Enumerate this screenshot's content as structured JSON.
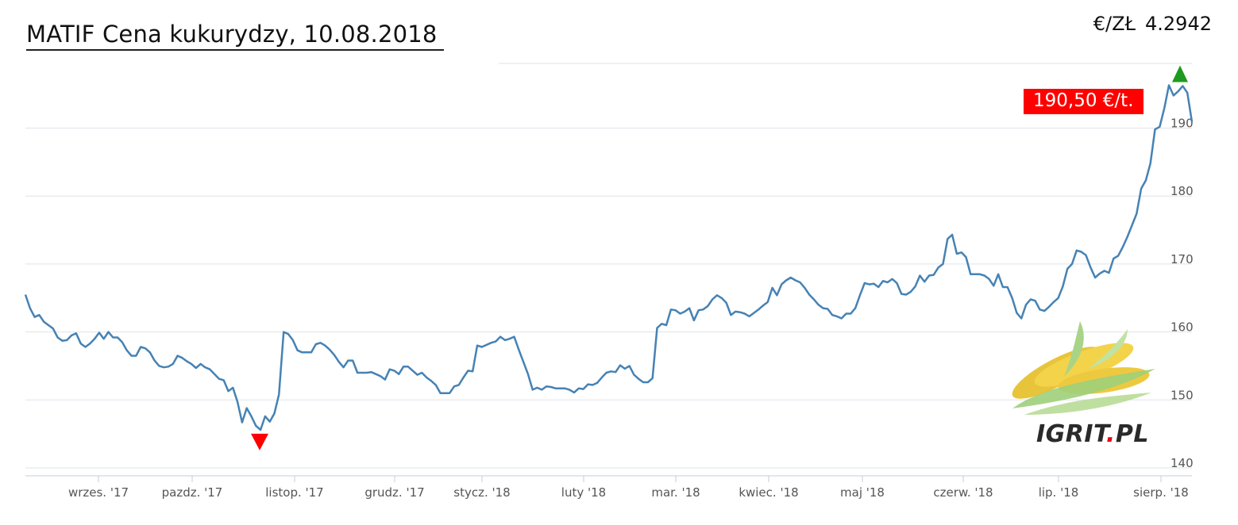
{
  "header": {
    "title": "MATIF Cena kukurydzy, 10.08.2018",
    "rate_label": "€/ZŁ",
    "rate_value": "4.2942"
  },
  "price_badge": "190,50 €/t.",
  "logo": {
    "text_main": "IGRIT",
    "text_dot": ".",
    "text_suffix": "PL"
  },
  "colors": {
    "line": "#4682b4",
    "grid": "#dfe3ea",
    "badge": "#ff0000",
    "up_marker": "#1e9a1e",
    "down_marker": "#ff0000"
  },
  "chart_data": {
    "type": "line",
    "title": "MATIF Cena kukurydzy, 10.08.2018",
    "xlabel": "",
    "ylabel": "",
    "ylim": [
      138,
      205
    ],
    "yticks": [
      140,
      150,
      160,
      170,
      180,
      190
    ],
    "xlim": [
      0,
      345
    ],
    "xticks": [
      {
        "label": "wrzes. '17",
        "x": 21
      },
      {
        "label": "pazdz. '17",
        "x": 48
      },
      {
        "label": "listop. '17",
        "x": 77
      },
      {
        "label": "grudz. '17",
        "x": 104
      },
      {
        "label": "stycz. '18",
        "x": 132
      },
      {
        "label": "luty '18",
        "x": 161
      },
      {
        "label": "mar. '18",
        "x": 188
      },
      {
        "label": "kwiec. '18",
        "x": 216
      },
      {
        "label": "maj '18",
        "x": 243
      },
      {
        "label": "czerw. '18",
        "x": 272
      },
      {
        "label": "lip. '18",
        "x": 299
      },
      {
        "label": "sierp. '18",
        "x": 327
      }
    ],
    "grid": true,
    "markers": {
      "min": {
        "x": 68,
        "y": 145.5
      },
      "max": {
        "x": 342,
        "y": 197
      }
    },
    "series": [
      {
        "values": [
          [
            0,
            165.5
          ],
          [
            1,
            163.5
          ],
          [
            2,
            162.2
          ],
          [
            3,
            162.5
          ],
          [
            4,
            161.5
          ],
          [
            5,
            161
          ],
          [
            6,
            160.5
          ],
          [
            7,
            159.2
          ],
          [
            8,
            158.7
          ],
          [
            9,
            158.8
          ],
          [
            10,
            159.5
          ],
          [
            11,
            159.8
          ],
          [
            12,
            158.3
          ],
          [
            13,
            157.8
          ],
          [
            14,
            158.3
          ],
          [
            15,
            159
          ],
          [
            16,
            159.9
          ],
          [
            17,
            159
          ],
          [
            18,
            160
          ],
          [
            19,
            159.2
          ],
          [
            20,
            159.2
          ],
          [
            21,
            158.5
          ],
          [
            22,
            157.3
          ],
          [
            23,
            156.5
          ],
          [
            24,
            156.5
          ],
          [
            25,
            157.8
          ],
          [
            26,
            157.6
          ],
          [
            27,
            157
          ],
          [
            28,
            155.8
          ],
          [
            29,
            155
          ],
          [
            30,
            154.8
          ],
          [
            31,
            154.9
          ],
          [
            32,
            155.3
          ],
          [
            33,
            156.5
          ],
          [
            34,
            156.2
          ],
          [
            35,
            155.7
          ],
          [
            36,
            155.3
          ],
          [
            37,
            154.7
          ],
          [
            38,
            155.3
          ],
          [
            39,
            154.8
          ],
          [
            40,
            154.5
          ],
          [
            41,
            153.8
          ],
          [
            42,
            153.1
          ],
          [
            43,
            152.9
          ],
          [
            44,
            151.3
          ],
          [
            45,
            151.8
          ],
          [
            46,
            149.7
          ],
          [
            47,
            146.7
          ],
          [
            48,
            148.8
          ],
          [
            49,
            147.6
          ],
          [
            50,
            146.2
          ],
          [
            51,
            145.6
          ],
          [
            52,
            147.6
          ],
          [
            53,
            146.8
          ],
          [
            54,
            148
          ],
          [
            55,
            150.8
          ],
          [
            56,
            160
          ],
          [
            57,
            159.7
          ],
          [
            58,
            158.8
          ],
          [
            59,
            157.3
          ],
          [
            60,
            157
          ],
          [
            61,
            157
          ],
          [
            62,
            157
          ],
          [
            63,
            158.2
          ],
          [
            64,
            158.4
          ],
          [
            65,
            158
          ],
          [
            66,
            157.4
          ],
          [
            67,
            156.6
          ],
          [
            68,
            155.6
          ],
          [
            69,
            154.8
          ],
          [
            70,
            155.8
          ],
          [
            71,
            155.8
          ],
          [
            72,
            154
          ],
          [
            73,
            154
          ],
          [
            74,
            154
          ],
          [
            75,
            154.1
          ],
          [
            76,
            153.8
          ],
          [
            77,
            153.5
          ],
          [
            78,
            153
          ],
          [
            79,
            154.5
          ],
          [
            80,
            154.3
          ],
          [
            81,
            153.8
          ],
          [
            82,
            154.9
          ],
          [
            83,
            154.9
          ],
          [
            84,
            154.3
          ],
          [
            85,
            153.7
          ],
          [
            86,
            154
          ],
          [
            87,
            153.3
          ],
          [
            88,
            152.8
          ],
          [
            89,
            152.2
          ],
          [
            90,
            151
          ],
          [
            91,
            151
          ],
          [
            92,
            151
          ],
          [
            93,
            152
          ],
          [
            94,
            152.2
          ],
          [
            95,
            153.3
          ],
          [
            96,
            154.3
          ],
          [
            97,
            154.2
          ],
          [
            98,
            158
          ],
          [
            99,
            157.8
          ],
          [
            100,
            158.1
          ],
          [
            101,
            158.4
          ],
          [
            102,
            158.6
          ],
          [
            103,
            159.3
          ],
          [
            104,
            158.8
          ],
          [
            105,
            159
          ],
          [
            106,
            159.3
          ],
          [
            107,
            157.4
          ],
          [
            108,
            155.6
          ],
          [
            109,
            153.8
          ],
          [
            110,
            151.5
          ],
          [
            111,
            151.8
          ],
          [
            112,
            151.5
          ],
          [
            113,
            152
          ],
          [
            114,
            151.9
          ],
          [
            115,
            151.7
          ],
          [
            116,
            151.7
          ],
          [
            117,
            151.7
          ],
          [
            118,
            151.5
          ],
          [
            119,
            151.1
          ],
          [
            120,
            151.7
          ],
          [
            121,
            151.6
          ],
          [
            122,
            152.3
          ],
          [
            123,
            152.2
          ],
          [
            124,
            152.5
          ],
          [
            125,
            153.3
          ],
          [
            126,
            154
          ],
          [
            127,
            154.2
          ],
          [
            128,
            154.1
          ],
          [
            129,
            155.1
          ],
          [
            130,
            154.6
          ],
          [
            131,
            155
          ],
          [
            132,
            153.7
          ],
          [
            133,
            153.1
          ],
          [
            134,
            152.6
          ],
          [
            135,
            152.6
          ],
          [
            136,
            153.2
          ],
          [
            137,
            160.6
          ],
          [
            138,
            161.2
          ],
          [
            139,
            161
          ],
          [
            140,
            163.3
          ],
          [
            141,
            163.2
          ],
          [
            142,
            162.7
          ],
          [
            143,
            163
          ],
          [
            144,
            163.5
          ],
          [
            145,
            161.7
          ],
          [
            146,
            163.2
          ],
          [
            147,
            163.3
          ],
          [
            148,
            163.8
          ],
          [
            149,
            164.8
          ],
          [
            150,
            165.4
          ],
          [
            151,
            165
          ],
          [
            152,
            164.3
          ],
          [
            153,
            162.5
          ],
          [
            154,
            163
          ],
          [
            155,
            162.9
          ],
          [
            156,
            162.7
          ],
          [
            157,
            162.3
          ],
          [
            158,
            162.8
          ],
          [
            159,
            163.3
          ],
          [
            160,
            163.9
          ],
          [
            161,
            164.4
          ],
          [
            162,
            166.5
          ],
          [
            163,
            165.4
          ],
          [
            164,
            167
          ],
          [
            165,
            167.6
          ],
          [
            166,
            168
          ],
          [
            167,
            167.6
          ],
          [
            168,
            167.3
          ],
          [
            169,
            166.5
          ],
          [
            170,
            165.5
          ],
          [
            171,
            164.8
          ],
          [
            172,
            164
          ],
          [
            173,
            163.5
          ],
          [
            174,
            163.4
          ],
          [
            175,
            162.5
          ],
          [
            176,
            162.3
          ],
          [
            177,
            162
          ],
          [
            178,
            162.7
          ],
          [
            179,
            162.7
          ],
          [
            180,
            163.5
          ],
          [
            181,
            165.4
          ],
          [
            182,
            167.2
          ],
          [
            183,
            167
          ],
          [
            184,
            167.1
          ],
          [
            185,
            166.6
          ],
          [
            186,
            167.5
          ],
          [
            187,
            167.3
          ],
          [
            188,
            167.8
          ],
          [
            189,
            167.2
          ],
          [
            190,
            165.6
          ],
          [
            191,
            165.5
          ],
          [
            192,
            165.9
          ],
          [
            193,
            166.7
          ],
          [
            194,
            168.3
          ],
          [
            195,
            167.4
          ],
          [
            196,
            168.3
          ],
          [
            197,
            168.4
          ],
          [
            198,
            169.5
          ],
          [
            199,
            170
          ],
          [
            200,
            173.7
          ],
          [
            201,
            174.3
          ],
          [
            202,
            171.5
          ],
          [
            203,
            171.7
          ],
          [
            204,
            171
          ],
          [
            205,
            168.5
          ],
          [
            206,
            168.5
          ],
          [
            207,
            168.5
          ],
          [
            208,
            168.3
          ],
          [
            209,
            167.8
          ],
          [
            210,
            166.8
          ],
          [
            211,
            168.5
          ],
          [
            212,
            166.6
          ],
          [
            213,
            166.6
          ],
          [
            214,
            165
          ],
          [
            215,
            162.8
          ],
          [
            216,
            162
          ],
          [
            217,
            164
          ],
          [
            218,
            164.8
          ],
          [
            219,
            164.6
          ],
          [
            220,
            163.3
          ],
          [
            221,
            163.1
          ],
          [
            222,
            163.7
          ],
          [
            223,
            164.4
          ],
          [
            224,
            165
          ],
          [
            225,
            166.7
          ],
          [
            226,
            169.3
          ],
          [
            227,
            170
          ],
          [
            228,
            172
          ],
          [
            229,
            171.8
          ],
          [
            230,
            171.3
          ],
          [
            231,
            169.5
          ],
          [
            232,
            168
          ],
          [
            233,
            168.6
          ],
          [
            234,
            169
          ],
          [
            235,
            168.7
          ],
          [
            236,
            170.8
          ],
          [
            237,
            171.2
          ],
          [
            238,
            172.5
          ],
          [
            239,
            174
          ],
          [
            240,
            175.7
          ],
          [
            241,
            177.4
          ],
          [
            242,
            181.1
          ],
          [
            243,
            182.3
          ],
          [
            244,
            184.8
          ],
          [
            245,
            189.8
          ],
          [
            246,
            190.2
          ],
          [
            247,
            192.9
          ],
          [
            248,
            196.3
          ],
          [
            249,
            194.8
          ],
          [
            250,
            195.4
          ],
          [
            251,
            196.2
          ],
          [
            252,
            195.2
          ],
          [
            253,
            190.9
          ]
        ]
      }
    ],
    "x_map": {
      "days": 253
    }
  }
}
